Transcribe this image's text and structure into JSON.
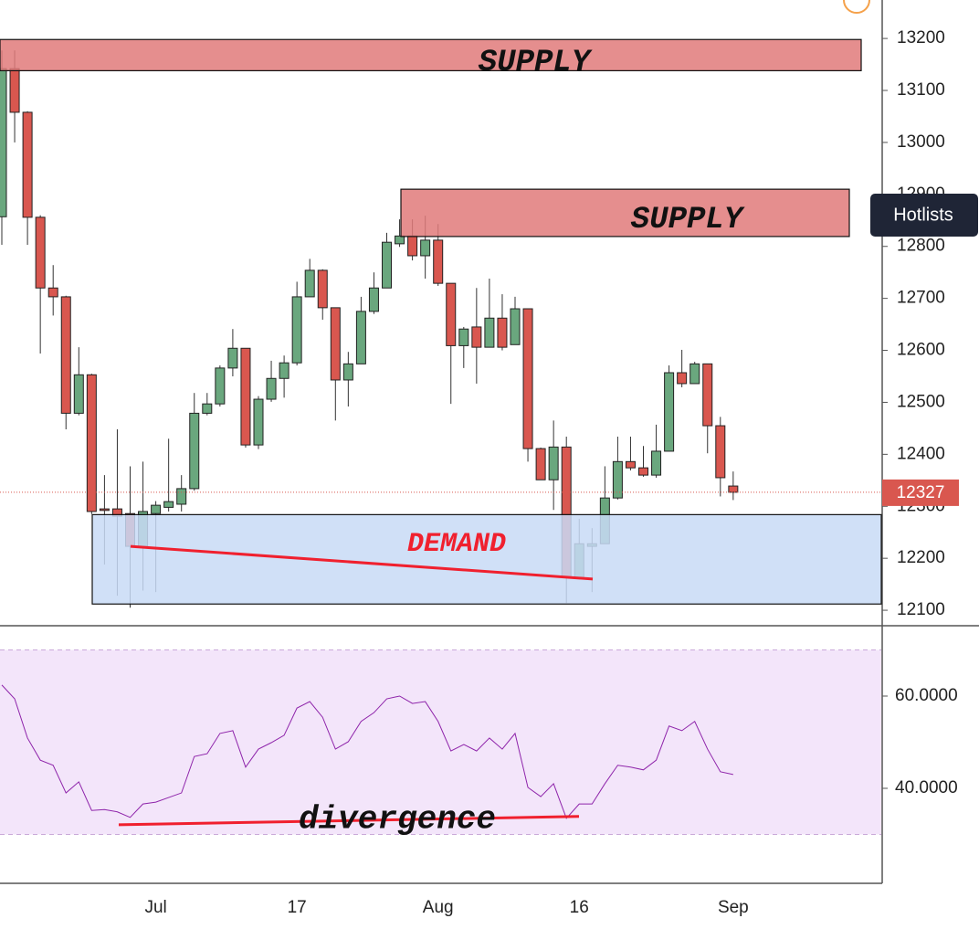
{
  "chart_data": [
    {
      "type": "candlestick",
      "categories": [
        null,
        null,
        null,
        null,
        null,
        null,
        null,
        null,
        null,
        null,
        null,
        null,
        "Jul",
        null,
        null,
        null,
        null,
        null,
        null,
        null,
        null,
        null,
        null,
        "17",
        null,
        null,
        null,
        null,
        null,
        null,
        null,
        null,
        null,
        null,
        "Aug",
        null,
        null,
        null,
        null,
        null,
        null,
        null,
        null,
        null,
        null,
        "16",
        null,
        null,
        null,
        null,
        null,
        null,
        null,
        null,
        null,
        null,
        null,
        "Sep"
      ],
      "open": [
        12857,
        13142,
        13058,
        12856,
        12720,
        12703,
        12479,
        12553,
        12295,
        12295,
        12286,
        12223,
        12286,
        12298,
        12304,
        12334,
        12479,
        12497,
        12566,
        12604,
        12418,
        12506,
        12546,
        12576,
        12703,
        12754,
        12682,
        12543,
        12574,
        12675,
        12720,
        12805,
        12820,
        12782,
        12812,
        12729,
        12609,
        12645,
        12606,
        12662,
        12611,
        12680,
        12411,
        12351,
        12414,
        12163,
        12223,
        12228,
        12316,
        12386,
        12374,
        12360,
        12406,
        12557,
        12536,
        12574,
        12455,
        12339
      ],
      "high": [
        13177,
        13177,
        13060,
        12860,
        12764,
        12705,
        12606,
        12555,
        12360,
        12448,
        12377,
        12386,
        12310,
        12430,
        12360,
        12518,
        12518,
        12571,
        12641,
        12604,
        12512,
        12580,
        12590,
        12732,
        12776,
        12756,
        12682,
        12597,
        12703,
        12750,
        12826,
        12852,
        12852,
        12859,
        12843,
        12729,
        12645,
        12720,
        12738,
        12708,
        12703,
        12680,
        12413,
        12465,
        12434,
        12276,
        12258,
        12377,
        12434,
        12434,
        12416,
        12457,
        12571,
        12601,
        12578,
        12574,
        12472,
        12367
      ],
      "low": [
        12803,
        13000,
        12803,
        12594,
        12667,
        12448,
        12475,
        12285,
        12188,
        12128,
        12105,
        12138,
        12135,
        12290,
        12290,
        12330,
        12475,
        12492,
        12550,
        12413,
        12410,
        12501,
        12509,
        12571,
        12703,
        12659,
        12465,
        12492,
        12574,
        12670,
        12720,
        12799,
        12773,
        12738,
        12724,
        12497,
        12566,
        12536,
        12606,
        12600,
        12611,
        12386,
        12351,
        12293,
        12114,
        12163,
        12135,
        12228,
        12313,
        12369,
        12357,
        12355,
        12406,
        12529,
        12536,
        12402,
        12319,
        12312
      ],
      "close": [
        13142,
        13058,
        12856,
        12720,
        12703,
        12479,
        12553,
        12290,
        12292,
        12281,
        12223,
        12290,
        12302,
        12309,
        12334,
        12479,
        12497,
        12566,
        12604,
        12418,
        12506,
        12546,
        12576,
        12703,
        12754,
        12682,
        12543,
        12574,
        12675,
        12720,
        12808,
        12820,
        12782,
        12812,
        12729,
        12609,
        12641,
        12606,
        12662,
        12606,
        12680,
        12411,
        12351,
        12414,
        12163,
        12228,
        12228,
        12316,
        12386,
        12374,
        12360,
        12406,
        12557,
        12536,
        12574,
        12455,
        12355,
        12327
      ],
      "up_color": "#6aa77e",
      "down_color": "#d9574f",
      "ylim": [
        12072,
        13274
      ],
      "yticks": [
        12100,
        12200,
        12300,
        12400,
        12500,
        12600,
        12700,
        12800,
        12900,
        13000,
        13100,
        13200
      ],
      "last_price": 12327,
      "zones": [
        {
          "label": "SUPPLY",
          "from": 13138,
          "to": 13198,
          "color": "#e07a7a",
          "text_color": "#111111"
        },
        {
          "label": "SUPPLY",
          "from": 12819,
          "to": 12910,
          "color": "#e07a7a",
          "text_color": "#111111"
        },
        {
          "label": "DEMAND",
          "from": 12112,
          "to": 12284,
          "color": "#c8daf6",
          "text_color": "#f0202e"
        }
      ],
      "trendline": {
        "from": 12223,
        "to": 12160,
        "color": "#f0202e"
      }
    },
    {
      "type": "line",
      "values": [
        62.4,
        59.4,
        50.9,
        46.1,
        45,
        39,
        41.4,
        35.2,
        35.4,
        34.9,
        33.7,
        36.6,
        37,
        38,
        39,
        46.9,
        47.5,
        51.9,
        52.5,
        44.6,
        48.5,
        49.9,
        51.5,
        57.4,
        58.8,
        55.4,
        48.5,
        50.1,
        54.5,
        56.4,
        59.4,
        60,
        58.4,
        58.8,
        54.5,
        48.1,
        49.5,
        48.1,
        50.9,
        48.5,
        51.9,
        40.2,
        38.2,
        41,
        33.5,
        36.6,
        36.6,
        41,
        45,
        44.6,
        44,
        46.1,
        53.5,
        52.5,
        54.5,
        48.5,
        43.6,
        43
      ],
      "color": "#8e24aa",
      "ylim": [
        19.6,
        75.05
      ],
      "yticks": [
        {
          "value": 40,
          "label": "40.0000"
        },
        {
          "value": 60,
          "label": "60.0000"
        }
      ],
      "band": [
        30,
        70
      ],
      "trendline": {
        "from": 32.1,
        "to": 33.9,
        "color": "#f0202e",
        "label": "divergence"
      }
    }
  ],
  "ui": {
    "hotlists": "Hotlists"
  }
}
